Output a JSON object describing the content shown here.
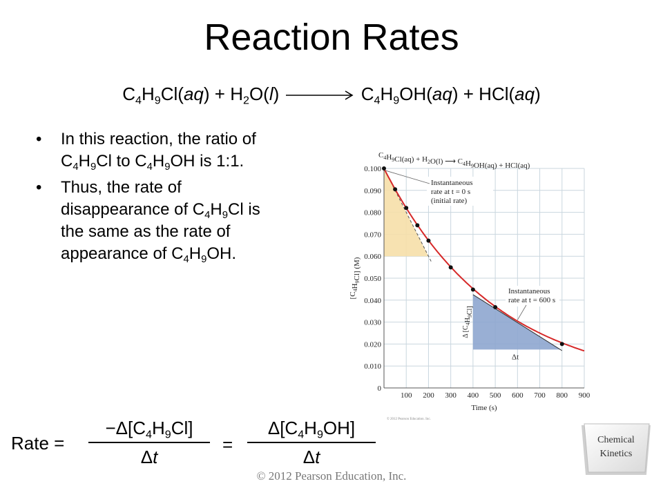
{
  "slide": {
    "title": "Reaction Rates",
    "equation": {
      "reactant1": "C4H9Cl(aq)",
      "plus1": "+",
      "reactant2": "H2O(l)",
      "product1": "C4H9OH(aq)",
      "plus2": "+",
      "product2": "HCl(aq)"
    },
    "bullets": [
      "In this reaction, the ratio of C4H9Cl to C4H9OH is 1:1.",
      "Thus, the rate of disappearance of C4H9Cl is the same as the rate of appearance of C4H9OH."
    ],
    "rate_expression": {
      "label": "Rate =",
      "numerator1": "−Δ[C4H9Cl]",
      "denominator1": "Δt",
      "equals": "=",
      "numerator2": "Δ[C4H9OH]",
      "denominator2": "Δt"
    },
    "copyright": "© 2012 Pearson Education, Inc.",
    "badge": {
      "line1": "Chemical",
      "line2": "Kinetics"
    }
  },
  "chart_data": {
    "type": "line",
    "title": "C4H9Cl(aq) + H2O(l) ⟶ C4H9OH(aq) + HCl(aq)",
    "xlabel": "Time (s)",
    "ylabel": "[C4H9Cl] (M)",
    "xlim": [
      0,
      900
    ],
    "ylim": [
      0,
      0.1
    ],
    "x_ticks": [
      100,
      200,
      300,
      400,
      500,
      600,
      700,
      800,
      900
    ],
    "y_ticks": [
      0,
      0.01,
      0.02,
      0.03,
      0.04,
      0.05,
      0.06,
      0.07,
      0.08,
      0.09,
      0.1
    ],
    "y_tick_labels": [
      "0",
      "0.010",
      "0.020",
      "0.030",
      "0.040",
      "0.050",
      "0.060",
      "0.070",
      "0.080",
      "0.090",
      "0.100"
    ],
    "grid": true,
    "series": [
      {
        "x": [
          0,
          50,
          100,
          150,
          200,
          300,
          400,
          500,
          800
        ],
        "y": [
          0.1,
          0.0905,
          0.082,
          0.0741,
          0.0671,
          0.0549,
          0.0448,
          0.0368,
          0.02
        ]
      }
    ],
    "annotations": [
      {
        "text": "Instantaneous rate at t = 0 s (initial rate)"
      },
      {
        "text": "Instantaneous rate at t = 600 s"
      },
      {
        "text": "Δ [C4H9Cl]"
      },
      {
        "text": "Δt"
      }
    ],
    "small_print": "© 2012 Pearson Education, Inc.",
    "colors": {
      "curve": "#d62828",
      "tangent_fill_initial": "#f6dfa8",
      "tangent_fill_600": "#8ea6cf"
    }
  }
}
